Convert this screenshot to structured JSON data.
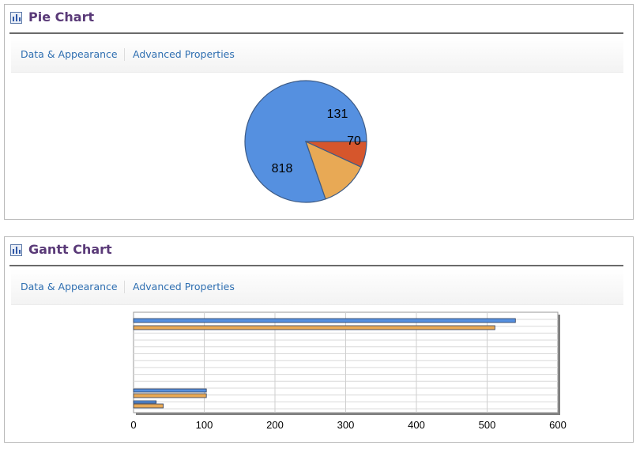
{
  "pie_panel": {
    "title": "Pie Chart",
    "tabs": [
      "Data & Appearance",
      "Advanced Properties"
    ]
  },
  "gantt_panel": {
    "title": "Gantt Chart",
    "tabs": [
      "Data & Appearance",
      "Advanced Properties"
    ]
  },
  "colors": {
    "blue": "#5590e0",
    "orange": "#e8a955",
    "red": "#d6562c",
    "title": "#5a3a78",
    "link": "#2f6fb1"
  },
  "chart_data": [
    {
      "type": "pie",
      "title": "",
      "values": [
        818,
        131,
        70
      ],
      "colors": [
        "#5590e0",
        "#e8a955",
        "#d6562c"
      ]
    },
    {
      "type": "bar",
      "orientation": "horizontal",
      "title": "",
      "xlabel": "",
      "ylabel": "",
      "xlim": [
        0,
        600
      ],
      "xticks": [
        0,
        100,
        200,
        300,
        400,
        500,
        600
      ],
      "series": [
        {
          "color": "#5590e0",
          "values": [
            540,
            103,
            32
          ]
        },
        {
          "color": "#e8a955",
          "values": [
            511,
            103,
            42
          ]
        }
      ],
      "grid": true
    }
  ]
}
